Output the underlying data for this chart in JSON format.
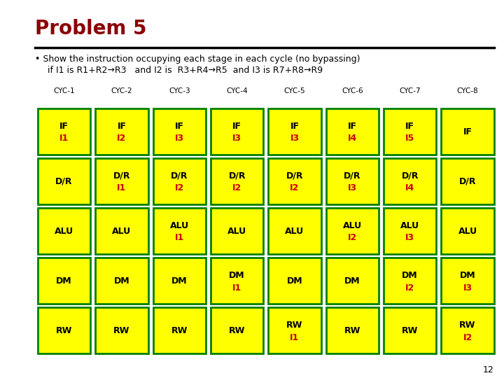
{
  "title": "Problem 5",
  "title_color": "#8B0000",
  "bullet_text": "Show the instruction occupying each stage in each cycle (no bypassing)",
  "sub_text": "if I1 is R1+R2→R3   and I2 is  R3+R4→R5  and I3 is R7+R8→R9",
  "page_number": "12",
  "cycles": [
    "CYC-1",
    "CYC-2",
    "CYC-3",
    "CYC-4",
    "CYC-5",
    "CYC-6",
    "CYC-7",
    "CYC-8"
  ],
  "stages": [
    "IF",
    "D/R",
    "ALU",
    "DM",
    "RW"
  ],
  "cell_bg": "#FFFF00",
  "cell_border": "#008000",
  "stage_label_color": "#000000",
  "instruction_color": "#CC0000",
  "grid": [
    [
      "IF\nI1",
      "IF\nI2",
      "IF\nI3",
      "IF\nI3",
      "IF\nI3",
      "IF\nI4",
      "IF\nI5",
      "IF"
    ],
    [
      "D/R",
      "D/R\nI1",
      "D/R\nI2",
      "D/R\nI2",
      "D/R\nI2",
      "D/R\nI3",
      "D/R\nI4",
      "D/R"
    ],
    [
      "ALU",
      "ALU",
      "ALU\nI1",
      "ALU",
      "ALU",
      "ALU\nI2",
      "ALU\nI3",
      "ALU"
    ],
    [
      "DM",
      "DM",
      "DM",
      "DM\nI1",
      "DM",
      "DM",
      "DM\nI2",
      "DM\nI3"
    ],
    [
      "RW",
      "RW",
      "RW",
      "RW",
      "RW\nI1",
      "RW",
      "RW",
      "RW\nI2"
    ]
  ],
  "bg_color": "#FFFFFF"
}
